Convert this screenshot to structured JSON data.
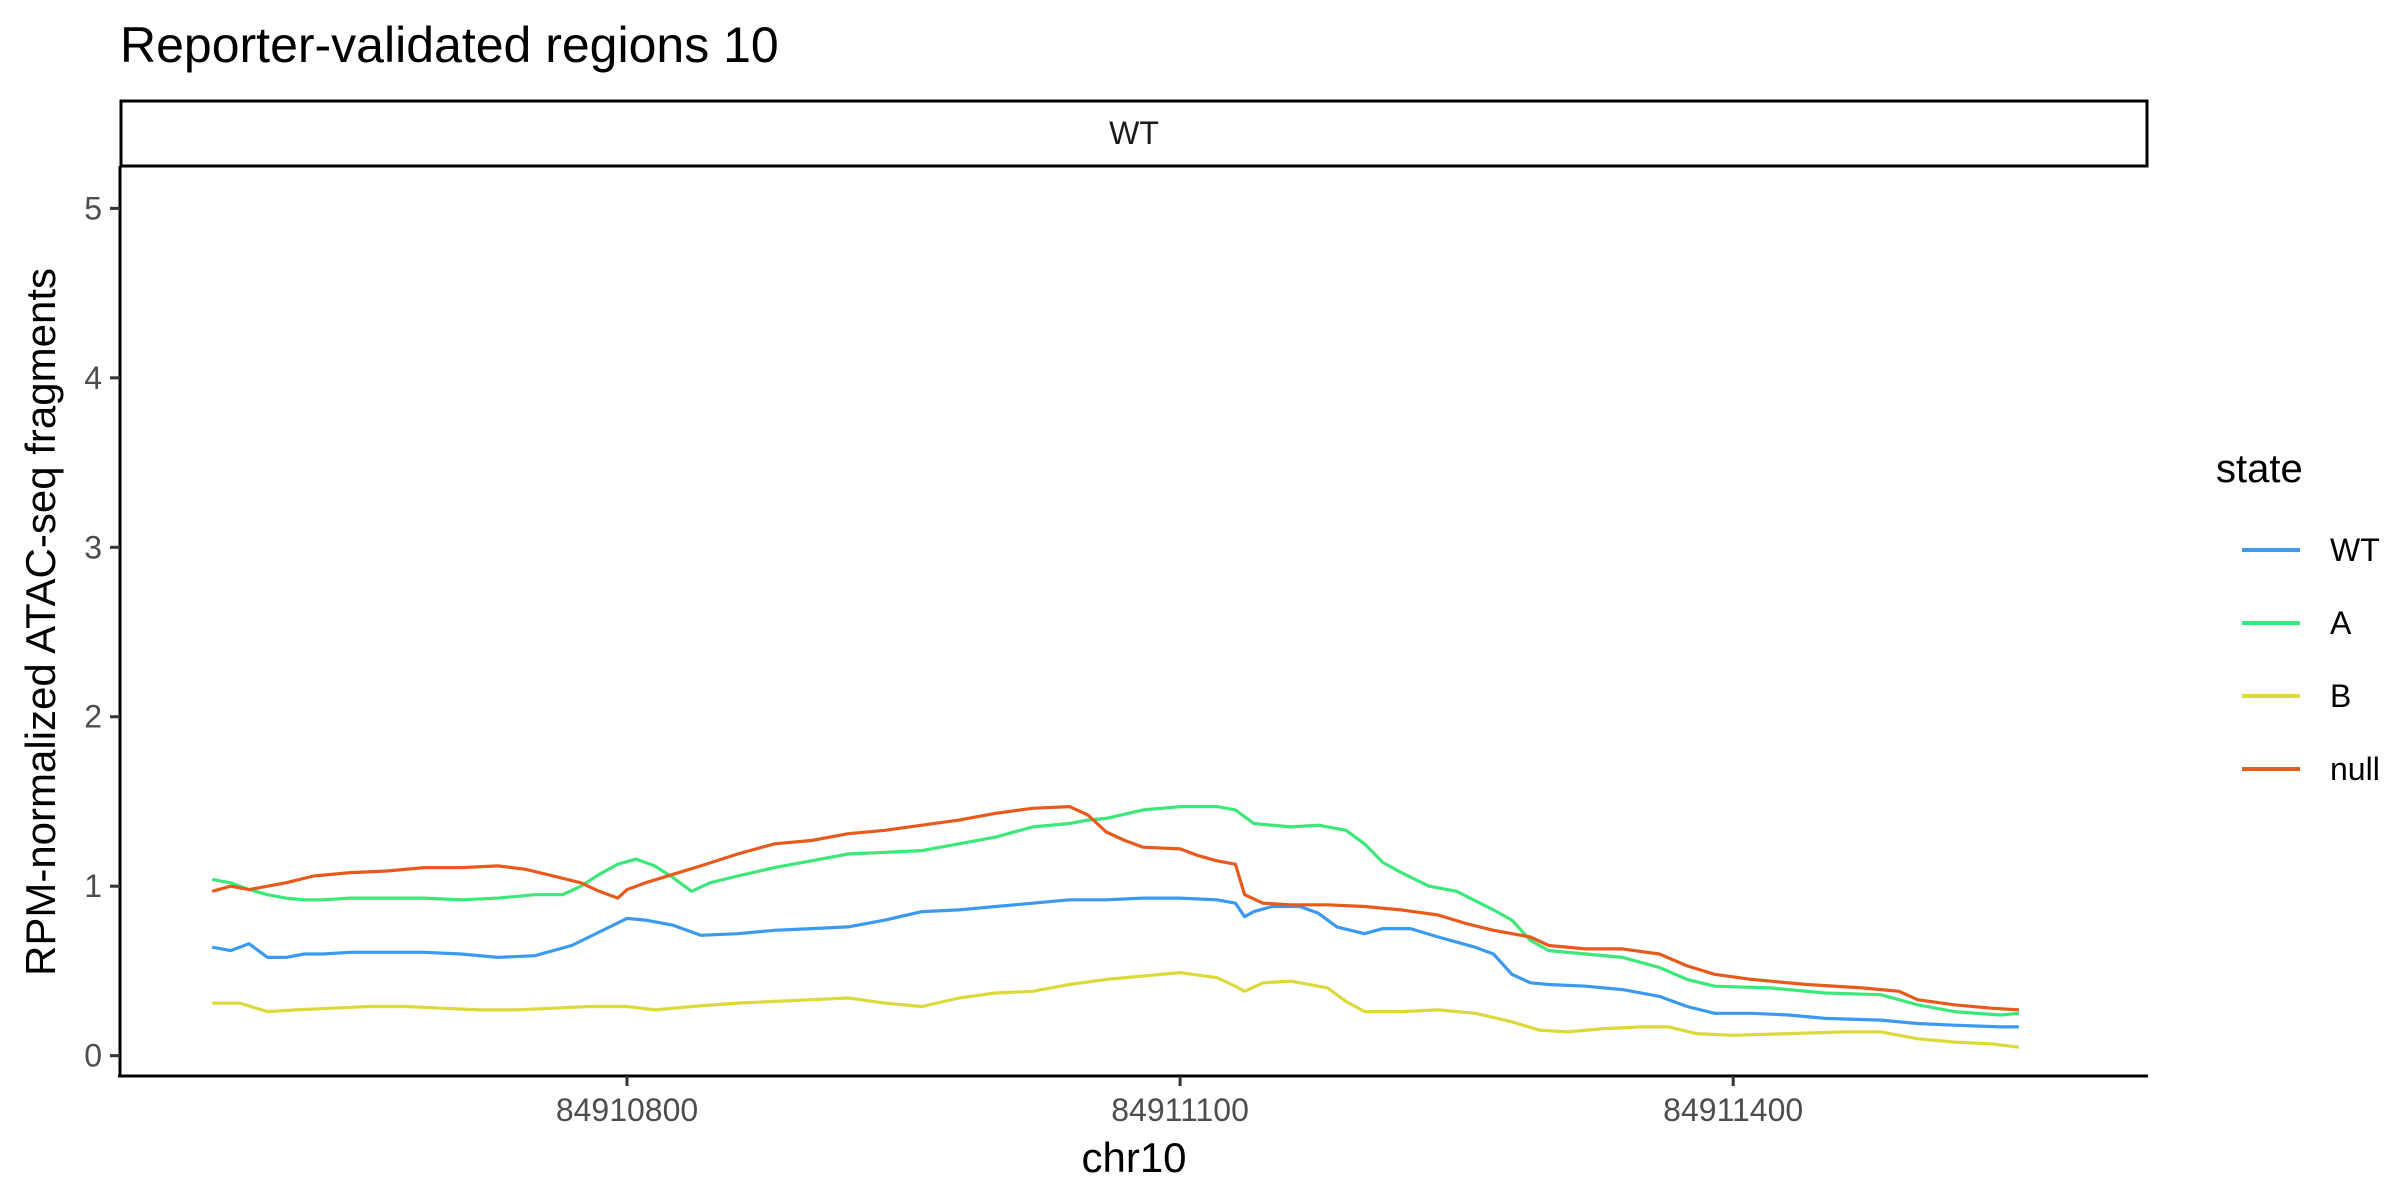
{
  "chart_data": {
    "type": "line",
    "title": "Reporter-validated regions 10",
    "facet_label": "WT",
    "xlabel": "chr10",
    "ylabel": "RPM-normalized ATAC-seq fragments",
    "xlim": [
      84910525,
      84911625
    ],
    "ylim": [
      -0.12,
      5.25
    ],
    "x_ticks": [
      84910800,
      84911100,
      84911400
    ],
    "x_tick_labels": [
      "84910800",
      "84911100",
      "84911400"
    ],
    "y_ticks": [
      0,
      1,
      2,
      3,
      4,
      5
    ],
    "y_tick_labels": [
      "0",
      "1",
      "2",
      "3",
      "4",
      "5"
    ],
    "grid": false,
    "legend": {
      "title": "state",
      "position": "right"
    },
    "series": [
      {
        "name": "WT",
        "color": "#3b9af0",
        "points": [
          [
            84910575,
            0.64
          ],
          [
            84910585,
            0.62
          ],
          [
            84910595,
            0.66
          ],
          [
            84910605,
            0.58
          ],
          [
            84910615,
            0.58
          ],
          [
            84910625,
            0.6
          ],
          [
            84910635,
            0.6
          ],
          [
            84910650,
            0.61
          ],
          [
            84910670,
            0.61
          ],
          [
            84910690,
            0.61
          ],
          [
            84910710,
            0.6
          ],
          [
            84910730,
            0.58
          ],
          [
            84910750,
            0.59
          ],
          [
            84910770,
            0.65
          ],
          [
            84910785,
            0.73
          ],
          [
            84910800,
            0.81
          ],
          [
            84910810,
            0.8
          ],
          [
            84910825,
            0.77
          ],
          [
            84910840,
            0.71
          ],
          [
            84910860,
            0.72
          ],
          [
            84910880,
            0.74
          ],
          [
            84910900,
            0.75
          ],
          [
            84910920,
            0.76
          ],
          [
            84910940,
            0.8
          ],
          [
            84910960,
            0.85
          ],
          [
            84910980,
            0.86
          ],
          [
            84911000,
            0.88
          ],
          [
            84911020,
            0.9
          ],
          [
            84911040,
            0.92
          ],
          [
            84911060,
            0.92
          ],
          [
            84911080,
            0.93
          ],
          [
            84911100,
            0.93
          ],
          [
            84911120,
            0.92
          ],
          [
            84911130,
            0.9
          ],
          [
            84911135,
            0.82
          ],
          [
            84911140,
            0.85
          ],
          [
            84911150,
            0.88
          ],
          [
            84911165,
            0.88
          ],
          [
            84911175,
            0.84
          ],
          [
            84911185,
            0.76
          ],
          [
            84911200,
            0.72
          ],
          [
            84911210,
            0.75
          ],
          [
            84911225,
            0.75
          ],
          [
            84911240,
            0.7
          ],
          [
            84911250,
            0.67
          ],
          [
            84911260,
            0.64
          ],
          [
            84911270,
            0.6
          ],
          [
            84911280,
            0.48
          ],
          [
            84911290,
            0.43
          ],
          [
            84911300,
            0.42
          ],
          [
            84911320,
            0.41
          ],
          [
            84911340,
            0.39
          ],
          [
            84911360,
            0.35
          ],
          [
            84911375,
            0.29
          ],
          [
            84911390,
            0.25
          ],
          [
            84911410,
            0.25
          ],
          [
            84911430,
            0.24
          ],
          [
            84911450,
            0.22
          ],
          [
            84911480,
            0.21
          ],
          [
            84911500,
            0.19
          ],
          [
            84911520,
            0.18
          ],
          [
            84911545,
            0.17
          ],
          [
            84911555,
            0.17
          ]
        ]
      },
      {
        "name": "A",
        "color": "#3de87a",
        "points": [
          [
            84910575,
            1.04
          ],
          [
            84910585,
            1.02
          ],
          [
            84910595,
            0.98
          ],
          [
            84910605,
            0.95
          ],
          [
            84910615,
            0.93
          ],
          [
            84910625,
            0.92
          ],
          [
            84910635,
            0.92
          ],
          [
            84910650,
            0.93
          ],
          [
            84910670,
            0.93
          ],
          [
            84910690,
            0.93
          ],
          [
            84910710,
            0.92
          ],
          [
            84910730,
            0.93
          ],
          [
            84910750,
            0.95
          ],
          [
            84910765,
            0.95
          ],
          [
            84910775,
            1.0
          ],
          [
            84910785,
            1.07
          ],
          [
            84910795,
            1.13
          ],
          [
            84910805,
            1.16
          ],
          [
            84910815,
            1.12
          ],
          [
            84910825,
            1.05
          ],
          [
            84910835,
            0.97
          ],
          [
            84910845,
            1.02
          ],
          [
            84910860,
            1.06
          ],
          [
            84910880,
            1.11
          ],
          [
            84910900,
            1.15
          ],
          [
            84910920,
            1.19
          ],
          [
            84910940,
            1.2
          ],
          [
            84910960,
            1.21
          ],
          [
            84910980,
            1.25
          ],
          [
            84911000,
            1.29
          ],
          [
            84911020,
            1.35
          ],
          [
            84911040,
            1.37
          ],
          [
            84911050,
            1.39
          ],
          [
            84911060,
            1.4
          ],
          [
            84911080,
            1.45
          ],
          [
            84911100,
            1.47
          ],
          [
            84911120,
            1.47
          ],
          [
            84911130,
            1.45
          ],
          [
            84911140,
            1.37
          ],
          [
            84911160,
            1.35
          ],
          [
            84911175,
            1.36
          ],
          [
            84911190,
            1.33
          ],
          [
            84911200,
            1.25
          ],
          [
            84911210,
            1.14
          ],
          [
            84911220,
            1.08
          ],
          [
            84911235,
            1.0
          ],
          [
            84911250,
            0.97
          ],
          [
            84911270,
            0.86
          ],
          [
            84911280,
            0.8
          ],
          [
            84911290,
            0.68
          ],
          [
            84911300,
            0.62
          ],
          [
            84911320,
            0.6
          ],
          [
            84911340,
            0.58
          ],
          [
            84911360,
            0.52
          ],
          [
            84911375,
            0.45
          ],
          [
            84911390,
            0.41
          ],
          [
            84911420,
            0.4
          ],
          [
            84911450,
            0.37
          ],
          [
            84911480,
            0.36
          ],
          [
            84911500,
            0.3
          ],
          [
            84911520,
            0.26
          ],
          [
            84911545,
            0.24
          ],
          [
            84911555,
            0.25
          ]
        ]
      },
      {
        "name": "B",
        "color": "#dcd93a",
        "points": [
          [
            84910575,
            0.31
          ],
          [
            84910590,
            0.31
          ],
          [
            84910605,
            0.26
          ],
          [
            84910620,
            0.27
          ],
          [
            84910640,
            0.28
          ],
          [
            84910660,
            0.29
          ],
          [
            84910680,
            0.29
          ],
          [
            84910700,
            0.28
          ],
          [
            84910720,
            0.27
          ],
          [
            84910740,
            0.27
          ],
          [
            84910760,
            0.28
          ],
          [
            84910780,
            0.29
          ],
          [
            84910800,
            0.29
          ],
          [
            84910815,
            0.27
          ],
          [
            84910835,
            0.29
          ],
          [
            84910860,
            0.31
          ],
          [
            84910880,
            0.32
          ],
          [
            84910900,
            0.33
          ],
          [
            84910920,
            0.34
          ],
          [
            84910940,
            0.31
          ],
          [
            84910960,
            0.29
          ],
          [
            84910980,
            0.34
          ],
          [
            84911000,
            0.37
          ],
          [
            84911020,
            0.38
          ],
          [
            84911040,
            0.42
          ],
          [
            84911060,
            0.45
          ],
          [
            84911080,
            0.47
          ],
          [
            84911100,
            0.49
          ],
          [
            84911120,
            0.46
          ],
          [
            84911130,
            0.41
          ],
          [
            84911135,
            0.38
          ],
          [
            84911145,
            0.43
          ],
          [
            84911160,
            0.44
          ],
          [
            84911180,
            0.4
          ],
          [
            84911190,
            0.32
          ],
          [
            84911200,
            0.26
          ],
          [
            84911220,
            0.26
          ],
          [
            84911240,
            0.27
          ],
          [
            84911260,
            0.25
          ],
          [
            84911280,
            0.2
          ],
          [
            84911295,
            0.15
          ],
          [
            84911310,
            0.14
          ],
          [
            84911330,
            0.16
          ],
          [
            84911350,
            0.17
          ],
          [
            84911365,
            0.17
          ],
          [
            84911380,
            0.13
          ],
          [
            84911400,
            0.12
          ],
          [
            84911430,
            0.13
          ],
          [
            84911460,
            0.14
          ],
          [
            84911480,
            0.14
          ],
          [
            84911500,
            0.1
          ],
          [
            84911520,
            0.08
          ],
          [
            84911540,
            0.07
          ],
          [
            84911555,
            0.05
          ]
        ]
      },
      {
        "name": "null",
        "color": "#e85a1c",
        "points": [
          [
            84910575,
            0.97
          ],
          [
            84910585,
            1.0
          ],
          [
            84910595,
            0.98
          ],
          [
            84910605,
            1.0
          ],
          [
            84910615,
            1.02
          ],
          [
            84910630,
            1.06
          ],
          [
            84910650,
            1.08
          ],
          [
            84910670,
            1.09
          ],
          [
            84910690,
            1.11
          ],
          [
            84910710,
            1.11
          ],
          [
            84910730,
            1.12
          ],
          [
            84910745,
            1.1
          ],
          [
            84910760,
            1.06
          ],
          [
            84910775,
            1.02
          ],
          [
            84910785,
            0.97
          ],
          [
            84910795,
            0.93
          ],
          [
            84910800,
            0.98
          ],
          [
            84910810,
            1.02
          ],
          [
            84910825,
            1.07
          ],
          [
            84910840,
            1.12
          ],
          [
            84910860,
            1.19
          ],
          [
            84910880,
            1.25
          ],
          [
            84910900,
            1.27
          ],
          [
            84910920,
            1.31
          ],
          [
            84910940,
            1.33
          ],
          [
            84910960,
            1.36
          ],
          [
            84910980,
            1.39
          ],
          [
            84911000,
            1.43
          ],
          [
            84911020,
            1.46
          ],
          [
            84911040,
            1.47
          ],
          [
            84911050,
            1.42
          ],
          [
            84911060,
            1.32
          ],
          [
            84911070,
            1.27
          ],
          [
            84911080,
            1.23
          ],
          [
            84911100,
            1.22
          ],
          [
            84911110,
            1.18
          ],
          [
            84911120,
            1.15
          ],
          [
            84911130,
            1.13
          ],
          [
            84911135,
            0.95
          ],
          [
            84911145,
            0.9
          ],
          [
            84911160,
            0.89
          ],
          [
            84911180,
            0.89
          ],
          [
            84911200,
            0.88
          ],
          [
            84911220,
            0.86
          ],
          [
            84911240,
            0.83
          ],
          [
            84911255,
            0.78
          ],
          [
            84911270,
            0.74
          ],
          [
            84911290,
            0.7
          ],
          [
            84911300,
            0.65
          ],
          [
            84911320,
            0.63
          ],
          [
            84911340,
            0.63
          ],
          [
            84911360,
            0.6
          ],
          [
            84911375,
            0.53
          ],
          [
            84911390,
            0.48
          ],
          [
            84911410,
            0.45
          ],
          [
            84911440,
            0.42
          ],
          [
            84911470,
            0.4
          ],
          [
            84911490,
            0.38
          ],
          [
            84911500,
            0.33
          ],
          [
            84911520,
            0.3
          ],
          [
            84911540,
            0.28
          ],
          [
            84911555,
            0.27
          ]
        ]
      }
    ]
  }
}
